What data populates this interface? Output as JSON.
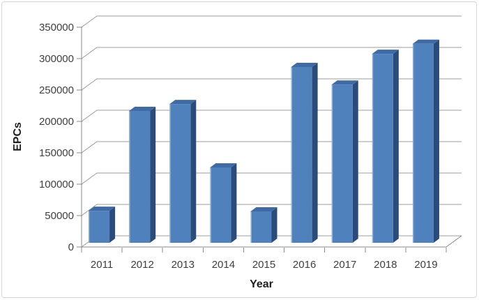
{
  "chart_data": {
    "type": "bar",
    "variant": "3d-clustered-column",
    "xlabel": "Year",
    "ylabel": "EPCs",
    "categories": [
      "2011",
      "2012",
      "2013",
      "2014",
      "2015",
      "2016",
      "2017",
      "2018",
      "2019"
    ],
    "values": [
      51000,
      210000,
      221000,
      120000,
      50000,
      280000,
      252000,
      301000,
      317000
    ],
    "ylim": [
      0,
      350000
    ],
    "ytick_interval": 50000,
    "ytick_labels": [
      "0",
      "50000",
      "100000",
      "150000",
      "200000",
      "250000",
      "300000",
      "350000"
    ],
    "grid": true,
    "legend": false,
    "colors": {
      "bar_front": "#4f81bd",
      "bar_side": "#2b4c7a",
      "bar_top": "#3e6ba5",
      "bar_highlight": "#a3c4e8",
      "gridline": "#9c9c9c",
      "axis_line": "#8a8a8a",
      "tick_label": "#3f3f3f",
      "axis_title": "#1f1f1f",
      "frame_border": "#d6d6d6",
      "plot_background": "#ffffff"
    }
  }
}
